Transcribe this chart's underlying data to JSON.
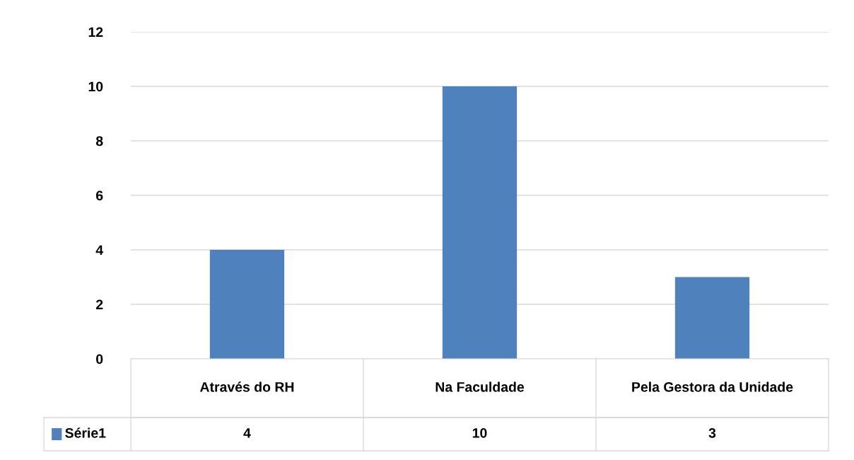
{
  "chart_data": {
    "type": "bar",
    "categories": [
      "Através do RH",
      "Na Faculdade",
      "Pela Gestora da Unidade"
    ],
    "series": [
      {
        "name": "Série1",
        "color": "#4f81bd",
        "values": [
          4,
          10,
          3
        ]
      }
    ],
    "ylim": [
      0,
      12
    ],
    "yticks": [
      0,
      2,
      4,
      6,
      8,
      10,
      12
    ],
    "grid": "y",
    "data_labels": true
  }
}
